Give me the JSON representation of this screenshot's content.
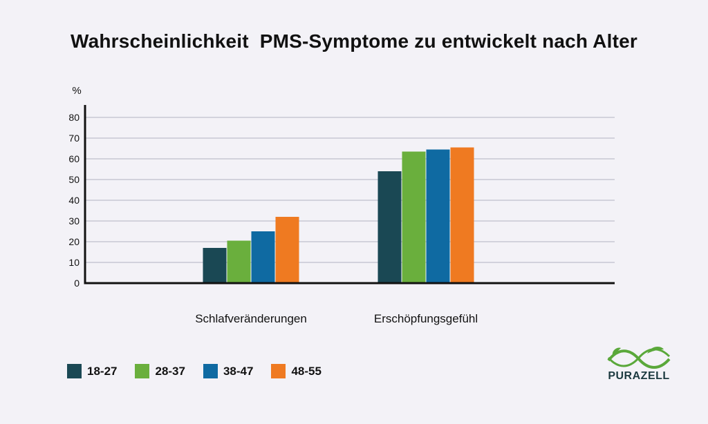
{
  "title": "Wahrscheinlichkeit  PMS-Symptome zu entwickelt nach Alter",
  "brand": "PURAZELL",
  "colors": {
    "background": "#f3f2f7",
    "series": [
      "#1a4854",
      "#6aaf3d",
      "#0f6aa2",
      "#ef7a21"
    ],
    "grid": "#c8c8d4",
    "axis": "#111111",
    "logo_green": "#5aa83a",
    "logo_dark": "#1c3a40"
  },
  "chart_data": {
    "type": "bar",
    "ylabel": "%",
    "xlabel": "",
    "ylim": [
      0,
      80
    ],
    "yticks": [
      0,
      10,
      20,
      30,
      40,
      50,
      60,
      70,
      80
    ],
    "grid": true,
    "legend_position": "bottom-left",
    "categories": [
      "Schlafveränderungen",
      "Erschöpfungsgefühl"
    ],
    "series": [
      {
        "name": "18-27",
        "values": [
          17,
          54
        ]
      },
      {
        "name": "28-37",
        "values": [
          20.5,
          63.5
        ]
      },
      {
        "name": "38-47",
        "values": [
          25,
          64.5
        ]
      },
      {
        "name": "48-55",
        "values": [
          32,
          65.5
        ]
      }
    ]
  }
}
